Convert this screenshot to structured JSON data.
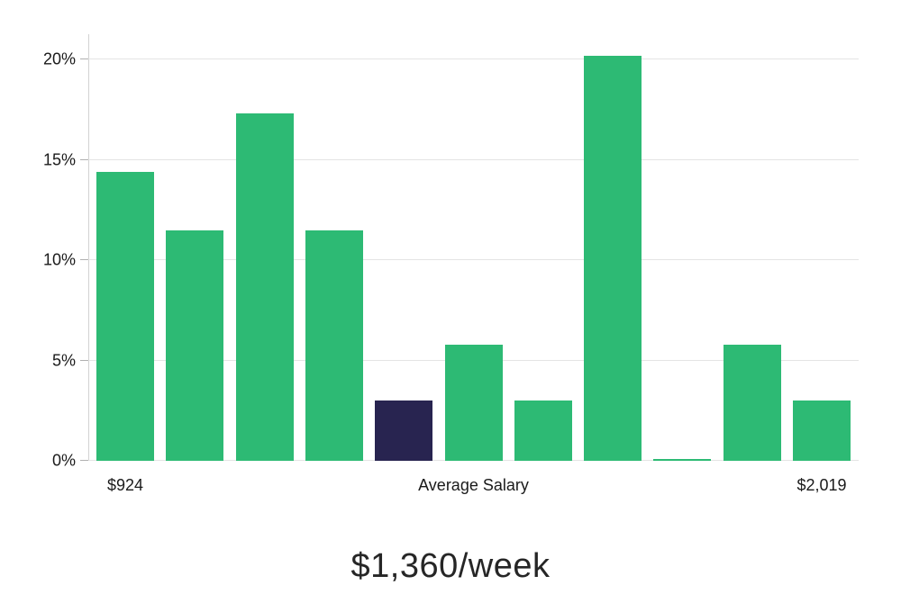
{
  "chart_data": {
    "type": "bar",
    "title": "$1,360/week",
    "values": [
      14.4,
      11.5,
      17.3,
      11.5,
      3.0,
      5.8,
      3.0,
      20.2,
      0.1,
      5.8,
      3.0
    ],
    "highlight_index": 4,
    "highlight_meaning": "bucket containing the average salary",
    "bar_color": "#2dba74",
    "highlight_color": "#282450",
    "y_ticks": [
      "0%",
      "5%",
      "10%",
      "15%",
      "20%"
    ],
    "y_tick_values": [
      0,
      5,
      10,
      15,
      20
    ],
    "ylim": [
      0,
      21.25
    ],
    "grid": true,
    "legend_position": "none",
    "x_labels": [
      {
        "text": "$924",
        "anchor": "min"
      },
      {
        "text": "Average Salary",
        "anchor": "center"
      },
      {
        "text": "$2,019",
        "anchor": "max"
      }
    ]
  }
}
